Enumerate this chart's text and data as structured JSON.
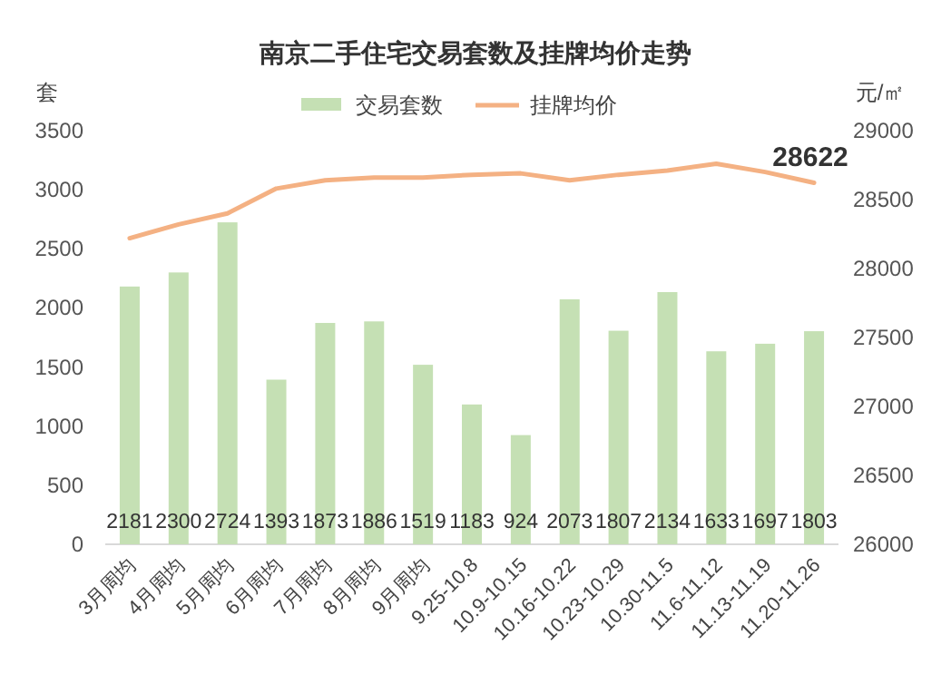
{
  "chart_data": {
    "type": "bar",
    "title": "南京二手住宅交易套数及挂牌均价走势",
    "ylabel": "套",
    "y2label": "元/㎡",
    "categories": [
      "3月周均",
      "4月周均",
      "5月周均",
      "6月周均",
      "7月周均",
      "8月周均",
      "9月周均",
      "9.25-10.8",
      "10.9-10.15",
      "10.16-10.22",
      "10.23-10.29",
      "10.30-11.5",
      "11.6-11.12",
      "11.13-11.19",
      "11.20-11.26"
    ],
    "series": [
      {
        "name": "交易套数",
        "color": "#c5e0b4",
        "values": [
          2181,
          2300,
          2724,
          1393,
          1873,
          1886,
          1519,
          1183,
          924,
          2073,
          1807,
          2134,
          1633,
          1697,
          1803
        ],
        "value_labels": [
          "2181",
          "2300",
          "2724",
          "1393",
          "1873",
          "1886",
          "1519",
          "1183",
          "924",
          "2073",
          "1807",
          "2134",
          "1633",
          "1697",
          "1803"
        ]
      },
      {
        "name": "挂牌均价",
        "type": "line",
        "axis": "y2",
        "color": "#f4b183",
        "values": [
          28220,
          28320,
          28400,
          28580,
          28640,
          28660,
          28660,
          28680,
          28690,
          28640,
          28680,
          28710,
          28760,
          28700,
          28622
        ],
        "value_labels": [
          null,
          null,
          null,
          null,
          null,
          null,
          null,
          null,
          null,
          null,
          null,
          null,
          null,
          null,
          "28622"
        ]
      }
    ],
    "ylim": [
      0,
      3500
    ],
    "yticks": [
      0,
      500,
      1000,
      1500,
      2000,
      2500,
      3000,
      3500
    ],
    "y2lim": [
      26000,
      29000
    ],
    "y2ticks": [
      26000,
      26500,
      27000,
      27500,
      28000,
      28500,
      29000
    ],
    "legend": "top"
  }
}
